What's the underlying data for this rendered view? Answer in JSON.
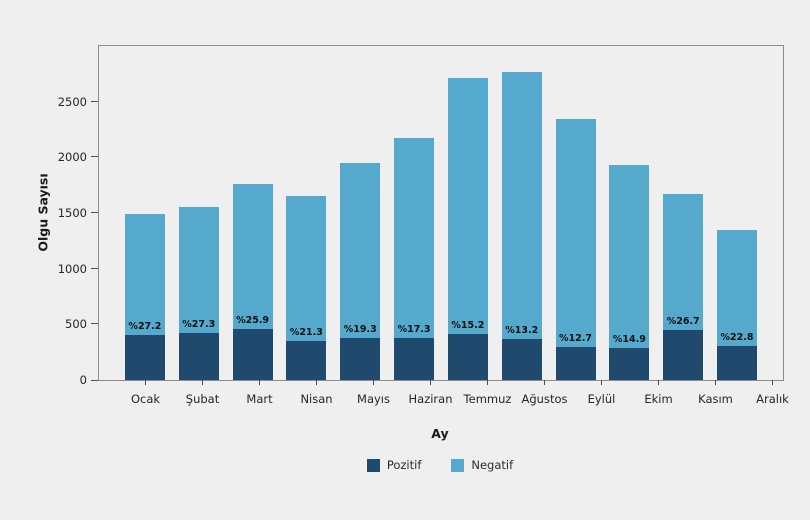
{
  "chart_data": {
    "type": "bar",
    "stacked": true,
    "title": "",
    "xlabel": "Ay",
    "ylabel": "Olgu Sayısı",
    "categories": [
      "Ocak",
      "Şubat",
      "Mart",
      "Nisan",
      "Mayıs",
      "Haziran",
      "Temmuz",
      "Ağustos",
      "Eylül",
      "Ekim",
      "Kasım",
      "Aralık"
    ],
    "series": [
      {
        "name": "Pozitif",
        "color": "#204a6d",
        "values": [
          405,
          426,
          456,
          351,
          376,
          375,
          412,
          364,
          298,
          288,
          446,
          308
        ]
      },
      {
        "name": "Negatif",
        "color": "#55a9cc",
        "values": [
          1085,
          1134,
          1304,
          1299,
          1574,
          1795,
          2298,
          2396,
          2052,
          1642,
          1224,
          1042
        ]
      }
    ],
    "totals": [
      1490,
      1560,
      1760,
      1650,
      1950,
      2170,
      2710,
      2760,
      2350,
      1930,
      1670,
      1350
    ],
    "bar_labels": [
      "%27.2",
      "%27.3",
      "%25.9",
      "%21.3",
      "%19.3",
      "%17.3",
      "%15.2",
      "%13.2",
      "%12.7",
      "%14.9",
      "%26.7",
      "%22.8"
    ],
    "yticks": [
      0,
      500,
      1000,
      1500,
      2000,
      2500
    ],
    "ylim": [
      0,
      3000
    ],
    "grid": false,
    "legend": {
      "position": "bottom",
      "entries": [
        "Pozitif",
        "Negatif"
      ]
    }
  },
  "colors": {
    "background": "#efefef",
    "plot_border": "#8c8c8c",
    "tick": "#4d4d4d",
    "text": "#262626",
    "pozitif": "#204a6d",
    "negatif": "#55a9cc"
  }
}
